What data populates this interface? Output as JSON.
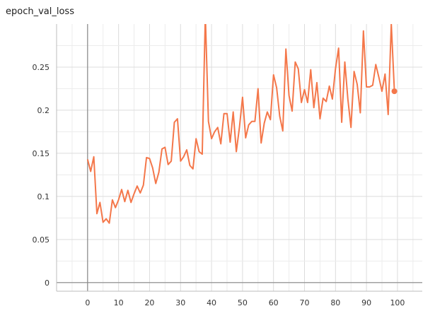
{
  "chart_data": {
    "type": "line",
    "title": "epoch_val_loss",
    "xlabel": "",
    "ylabel": "",
    "xlim": [
      -10,
      108
    ],
    "ylim": [
      -0.01,
      0.3
    ],
    "xticks": [
      0,
      10,
      20,
      30,
      40,
      50,
      60,
      70,
      80,
      90,
      100
    ],
    "xtick_labels": [
      "0",
      "10",
      "20",
      "30",
      "40",
      "50",
      "60",
      "70",
      "80",
      "90",
      "100"
    ],
    "yticks": [
      0,
      0.05,
      0.1,
      0.15,
      0.2,
      0.25
    ],
    "ytick_labels": [
      "0",
      "0.05",
      "0.1",
      "0.15",
      "0.2",
      "0.25"
    ],
    "grid": true,
    "line_color": "#f4774a",
    "series": [
      {
        "x": [
          0,
          1,
          2,
          3,
          4,
          5,
          6,
          7,
          8,
          9,
          10,
          11,
          12,
          13,
          14,
          15,
          16,
          17,
          18,
          19,
          20,
          21,
          22,
          23,
          24,
          25,
          26,
          27,
          28,
          29,
          30,
          31,
          32,
          33,
          34,
          35,
          36,
          37,
          38,
          39,
          40,
          41,
          42,
          43,
          44,
          45,
          46,
          47,
          48,
          49,
          50,
          51,
          52,
          53,
          54,
          55,
          56,
          57,
          58,
          59,
          60,
          61,
          62,
          63,
          64,
          65,
          66,
          67,
          68,
          69,
          70,
          71,
          72,
          73,
          74,
          75,
          76,
          77,
          78,
          79,
          80,
          81,
          82,
          83,
          84,
          85,
          86,
          87,
          88,
          89,
          90,
          91,
          92,
          93,
          94,
          95,
          96,
          97,
          98,
          99
        ],
        "y": [
          0.143,
          0.129,
          0.146,
          0.08,
          0.093,
          0.07,
          0.074,
          0.069,
          0.096,
          0.087,
          0.096,
          0.108,
          0.094,
          0.107,
          0.093,
          0.103,
          0.112,
          0.104,
          0.113,
          0.145,
          0.144,
          0.133,
          0.115,
          0.128,
          0.155,
          0.157,
          0.137,
          0.141,
          0.186,
          0.19,
          0.141,
          0.146,
          0.154,
          0.136,
          0.132,
          0.167,
          0.152,
          0.149,
          0.31,
          0.187,
          0.167,
          0.175,
          0.18,
          0.161,
          0.196,
          0.196,
          0.163,
          0.198,
          0.152,
          0.18,
          0.215,
          0.168,
          0.183,
          0.187,
          0.187,
          0.225,
          0.162,
          0.185,
          0.198,
          0.189,
          0.241,
          0.226,
          0.193,
          0.176,
          0.271,
          0.217,
          0.199,
          0.256,
          0.248,
          0.209,
          0.224,
          0.209,
          0.247,
          0.203,
          0.232,
          0.19,
          0.214,
          0.21,
          0.228,
          0.213,
          0.248,
          0.272,
          0.186,
          0.256,
          0.213,
          0.18,
          0.245,
          0.23,
          0.197,
          0.292,
          0.227,
          0.227,
          0.229,
          0.253,
          0.238,
          0.222,
          0.242,
          0.195,
          0.3,
          0.222
        ]
      }
    ]
  }
}
